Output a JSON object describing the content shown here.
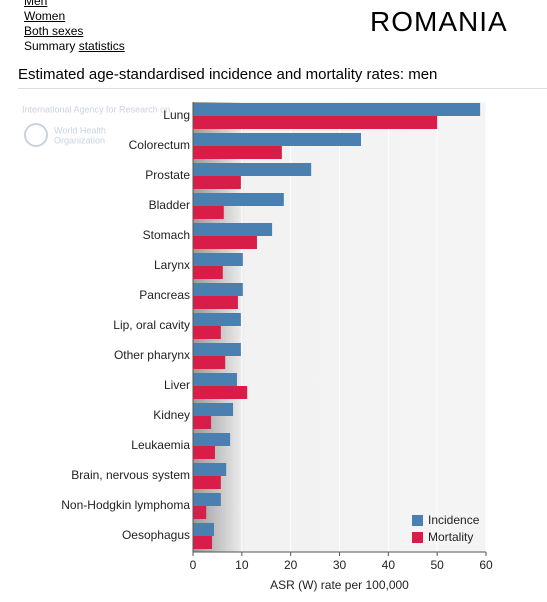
{
  "nav": {
    "links": [
      "Men",
      "Women",
      "Both sexes"
    ],
    "summary_prefix": "Summary",
    "summary_link": "statistics"
  },
  "country": "ROMANIA",
  "heading": "Estimated age-standardised incidence and mortality rates: men",
  "chart_data": {
    "type": "barh",
    "watermark": [
      "International Agency for Research on",
      "World Health",
      "Organization"
    ],
    "categories": [
      "Lung",
      "Colorectum",
      "Prostate",
      "Bladder",
      "Stomach",
      "Larynx",
      "Pancreas",
      "Lip, oral cavity",
      "Other pharynx",
      "Liver",
      "Kidney",
      "Leukaemia",
      "Brain, nervous system",
      "Non-Hodgkin lymphoma",
      "Oesophagus"
    ],
    "series": [
      {
        "name": "Incidence",
        "color": "#4a7fb2",
        "values": [
          58.8,
          34.4,
          24.2,
          18.6,
          16.2,
          10.2,
          10.2,
          9.8,
          9.8,
          9.0,
          8.2,
          7.6,
          6.8,
          5.7,
          4.3
        ]
      },
      {
        "name": "Mortality",
        "color": "#d81e48",
        "values": [
          50.0,
          18.2,
          9.8,
          6.3,
          13.1,
          6.1,
          9.2,
          5.7,
          6.6,
          11.1,
          3.7,
          4.5,
          5.7,
          2.7,
          3.9
        ]
      }
    ],
    "xlabel": "ASR (W) rate per 100,000",
    "xlim": [
      0,
      60
    ],
    "xticks": [
      0,
      10,
      20,
      30,
      40,
      50,
      60
    ],
    "legend": "bottom-right",
    "grid": true
  }
}
